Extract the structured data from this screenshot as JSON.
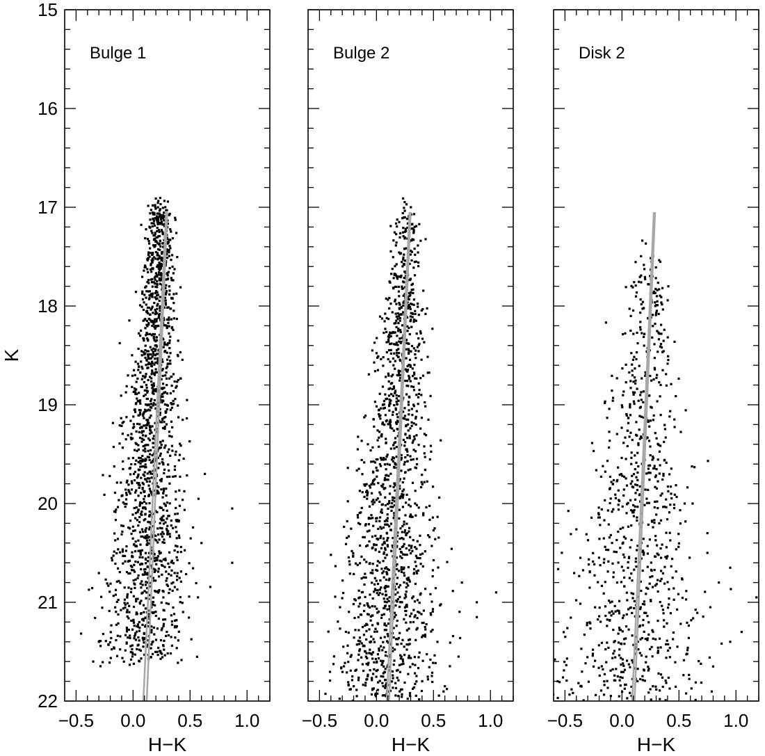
{
  "chart_data": [
    {
      "type": "scatter",
      "title": "",
      "panel_label": "Bulge 1",
      "xlabel": "H−K",
      "ylabel": "K",
      "xlim": [
        -0.6,
        1.2
      ],
      "ylim": [
        22,
        15
      ],
      "y_inverted": true,
      "x_ticks": [
        "−0.5",
        "0.0",
        "0.5",
        "1.0"
      ],
      "y_ticks": [
        "15",
        "16",
        "17",
        "18",
        "19",
        "20",
        "21",
        "22"
      ],
      "fiducial_lines": [
        {
          "name": "",
          "points": [
            [
              0.09,
              22.0
            ],
            [
              0.29,
              17.05
            ]
          ]
        },
        {
          "name": "",
          "points": [
            [
              0.12,
              22.0
            ],
            [
              0.3,
              17.05
            ]
          ]
        }
      ],
      "cloud": {
        "tip_k": 16.95,
        "faint_k": 21.6,
        "n_points": 1700,
        "tip_color": 0.25,
        "faint_color": 0.08,
        "width_bright": 0.05,
        "width_faint": 0.2,
        "bright_weight": 0.35
      },
      "outliers": [
        [
          0.87,
          20.05
        ],
        [
          0.87,
          20.6
        ],
        [
          0.63,
          19.7
        ],
        [
          -0.3,
          21.4
        ],
        [
          -0.35,
          21.6
        ],
        [
          0.12,
          21.45
        ],
        [
          0.57,
          20.95
        ],
        [
          0.6,
          20.4
        ]
      ]
    },
    {
      "type": "scatter",
      "title": "",
      "panel_label": "Bulge 2",
      "xlabel": "H−K",
      "ylabel": "",
      "xlim": [
        -0.6,
        1.2
      ],
      "ylim": [
        22,
        15
      ],
      "y_inverted": true,
      "x_ticks": [
        "−0.5",
        "0.0",
        "0.5",
        "1.0"
      ],
      "y_ticks": [],
      "fiducial_lines": [
        {
          "name": "",
          "points": [
            [
              0.09,
              22.0
            ],
            [
              0.29,
              17.05
            ]
          ]
        },
        {
          "name": "",
          "points": [
            [
              0.11,
              22.0
            ],
            [
              0.3,
              17.05
            ]
          ]
        }
      ],
      "cloud": {
        "tip_k": 16.93,
        "faint_k": 22.0,
        "n_points": 1500,
        "tip_color": 0.27,
        "faint_color": 0.08,
        "width_bright": 0.04,
        "width_faint": 0.25,
        "bright_weight": 0.2
      },
      "outliers": [
        [
          1.05,
          20.9
        ],
        [
          0.88,
          21.0
        ],
        [
          0.88,
          21.15
        ],
        [
          0.75,
          20.8
        ],
        [
          0.6,
          21.85
        ],
        [
          -0.2,
          21.85
        ],
        [
          0.72,
          21.55
        ],
        [
          -0.32,
          21.05
        ]
      ]
    },
    {
      "type": "scatter",
      "title": "",
      "panel_label": "Disk 2",
      "xlabel": "H−K",
      "ylabel": "",
      "xlim": [
        -0.6,
        1.2
      ],
      "ylim": [
        22,
        15
      ],
      "y_inverted": true,
      "x_ticks": [
        "−0.5",
        "0.0",
        "0.5",
        "1.0"
      ],
      "y_ticks": [],
      "fiducial_lines": [
        {
          "name": "",
          "points": [
            [
              0.09,
              22.0
            ],
            [
              0.28,
              17.05
            ]
          ]
        },
        {
          "name": "",
          "points": [
            [
              0.11,
              22.0
            ],
            [
              0.29,
              17.05
            ]
          ]
        }
      ],
      "cloud": {
        "tip_k": 17.3,
        "faint_k": 22.0,
        "n_points": 900,
        "tip_color": 0.25,
        "faint_color": 0.05,
        "width_bright": 0.05,
        "width_faint": 0.35,
        "bright_weight": 0.1
      },
      "outliers": [
        [
          1.18,
          20.95
        ],
        [
          0.95,
          20.65
        ],
        [
          1.05,
          21.3
        ],
        [
          0.85,
          20.8
        ],
        [
          0.75,
          20.3
        ],
        [
          0.75,
          20.5
        ],
        [
          0.55,
          20.0
        ],
        [
          0.62,
          20.0
        ],
        [
          0.8,
          21.65
        ],
        [
          0.95,
          21.4
        ]
      ]
    }
  ]
}
